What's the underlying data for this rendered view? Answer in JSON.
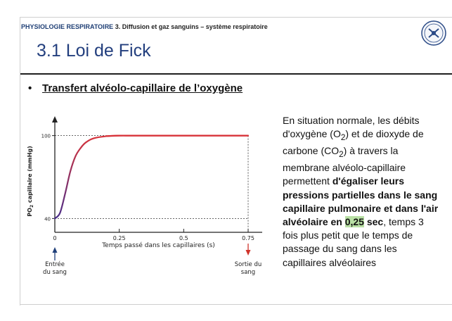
{
  "header": {
    "chapter": "PHYSIOLOGIE RESPIRATOIRE",
    "section": "3. Diffusion et gaz sanguins – système respiratoire"
  },
  "title": "3.1 Loi de Fick",
  "bullet": {
    "symbol": "•",
    "text": "Transfert alvéolo-capillaire de l’oxygène"
  },
  "logo_icon": "university-crest-icon",
  "paragraph": {
    "p1": "En situation normale, les débits d'oxygène (O",
    "p1_sub": "2",
    "p2": ") et de dioxyde de carbone (CO",
    "p2_sub": "2",
    "p3": ") à travers la membrane alvéolo-capillaire permettent ",
    "bold": "d'égaliser leurs pressions partielles dans le sang capillaire pulmonaire et dans l'air alvéolaire en ",
    "highlight": "0,25",
    "bold_end": " sec",
    "rest": ", temps 3 fois plus petit que le temps de passage du sang dans les capillaires alvéolaires"
  },
  "chart_data": {
    "type": "line",
    "ylabel": "PO",
    "ylabel_sub": "2",
    "ylabel_rest": " capillaire (mmHg)",
    "xlabel": "Temps passé dans les capillaires (s)",
    "xlim": [
      0,
      0.75
    ],
    "ylim": [
      30,
      110
    ],
    "xticks": [
      "0",
      "0.25",
      "0.5",
      "0.75"
    ],
    "yticks": [
      "40",
      "100"
    ],
    "reference_lines": [
      40,
      100
    ],
    "series": [
      {
        "x": [
          0,
          0.02,
          0.04,
          0.06,
          0.08,
          0.1,
          0.12,
          0.15,
          0.2,
          0.25,
          0.3,
          0.4,
          0.5,
          0.6,
          0.75
        ],
        "y": [
          40,
          44,
          58,
          74,
          85,
          91,
          95,
          98,
          99.6,
          100,
          100,
          100,
          100,
          100,
          100
        ]
      }
    ],
    "annotations": {
      "start": {
        "line1": "Entrée",
        "line2": "du sang",
        "color": "#1f3f7a"
      },
      "end": {
        "line1": "Sortie du",
        "line2": "sang",
        "color": "#d0342c"
      }
    },
    "line_colors": {
      "low": "#4a2e8a",
      "high": "#d8333a"
    }
  }
}
